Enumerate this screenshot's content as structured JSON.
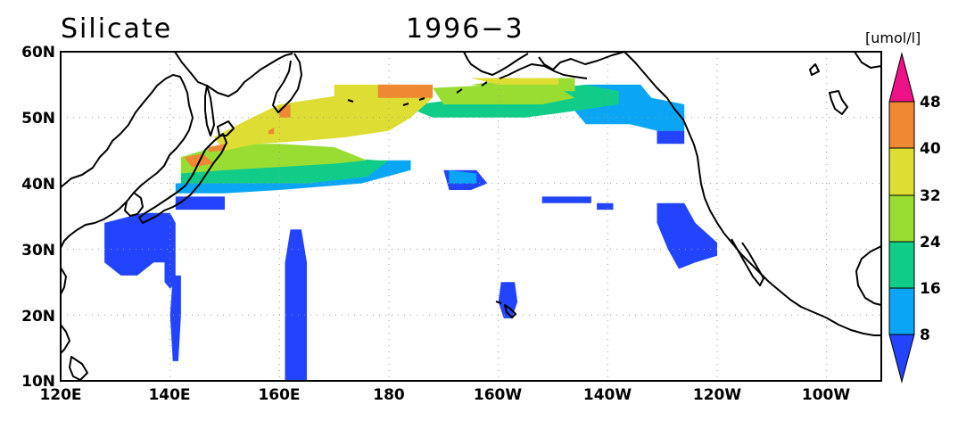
{
  "title": {
    "variable": "Silicate",
    "date": "1996−3"
  },
  "colors": {
    "background": "#ffffff",
    "land_outline": "#000000",
    "levels": [
      "#2244ff",
      "#0aa6f5",
      "#11cc88",
      "#99dd33",
      "#dddd33",
      "#ee8833",
      "#ee1188"
    ]
  },
  "map": {
    "projection": "equirectangular",
    "lon_range": [
      "120E",
      "90W"
    ],
    "lat_range": [
      "10N",
      "60N"
    ],
    "lat_labels": [
      "60N",
      "50N",
      "40N",
      "30N",
      "20N",
      "10N"
    ],
    "lon_labels": [
      "120E",
      "140E",
      "160E",
      "180",
      "160W",
      "140W",
      "120W",
      "100W"
    ]
  },
  "colorbar": {
    "unit": "[umol/l]",
    "labels": [
      "48",
      "40",
      "32",
      "24",
      "16",
      "8"
    ],
    "shape": "vertical with triangular end arrows"
  },
  "chart_data": {
    "type": "heatmap",
    "title": "Silicate   1996−3",
    "variable": "Silicate",
    "period": "1996-3",
    "unit": "umol/l",
    "lon_extent": [
      120,
      270
    ],
    "lat_extent": [
      10,
      60
    ],
    "levels": [
      8,
      16,
      24,
      32,
      40,
      48
    ],
    "regions": [
      {
        "level": "<8",
        "areas": [
          "subtropical band 10N-35N west of 180",
          "Kuroshio region 25N-35N 130E-145E",
          "Hawaii 20N-25N 160W",
          "off California 28N-37N 130W-120W",
          "patches near 40N 160W-135W",
          "Gulf of Alaska 48N 130W-125W"
        ]
      },
      {
        "level": "8-16",
        "areas": [
          "40N-42N 160E-170W",
          "Gulf of Alaska 49N-55N 140W-128W"
        ]
      },
      {
        "level": "16-24",
        "areas": [
          "40N-44N 145E-175E",
          "50N-55N 165W-140W"
        ]
      },
      {
        "level": "24-32",
        "areas": [
          "42N-47N 143E-175E",
          "52N-55N 170W-150W"
        ]
      },
      {
        "level": "32-40",
        "areas": [
          "45N-55N 150E-180",
          "54N-56N 165W-150W"
        ]
      },
      {
        "level": "40-48",
        "areas": [
          "52N-55N 178E-172W",
          "42N-44N 142E-148E",
          "50N-52N 160E"
        ]
      }
    ]
  }
}
